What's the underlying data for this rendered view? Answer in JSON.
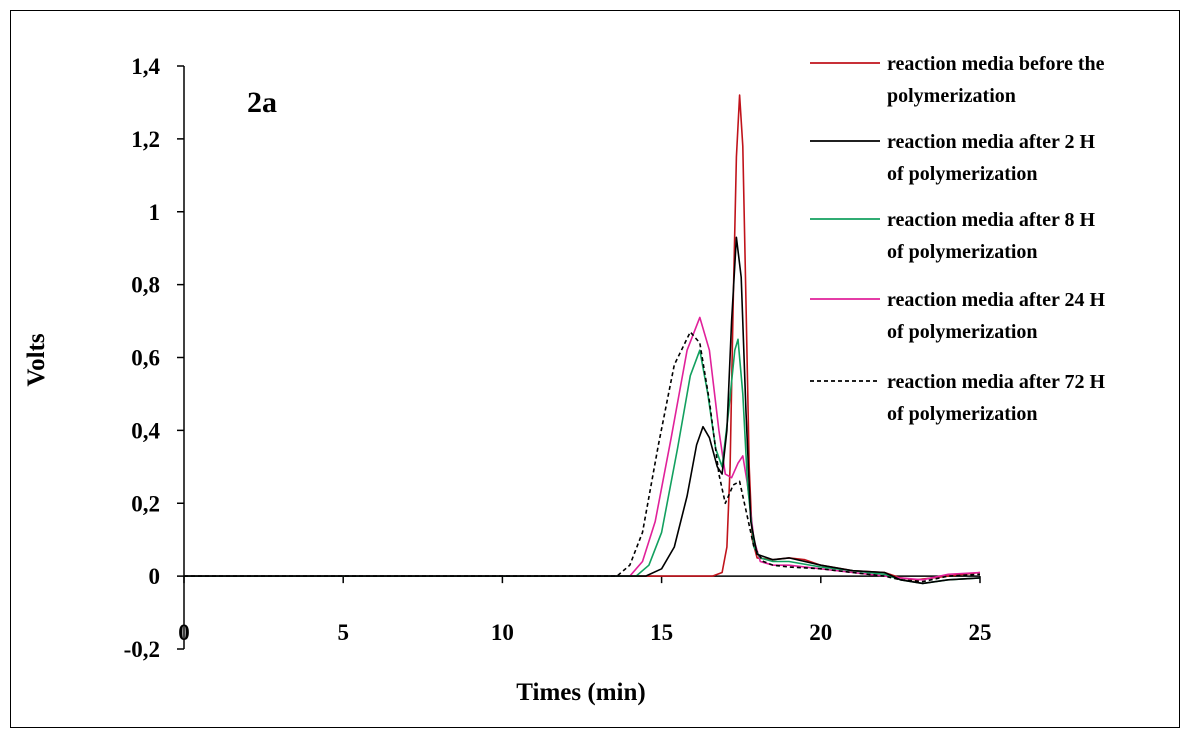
{
  "chart_data": {
    "type": "line",
    "panel_label": "2a",
    "xlabel": "Times (min)",
    "ylabel": "Volts",
    "xlim": [
      0,
      25
    ],
    "ylim": [
      -0.2,
      1.4
    ],
    "x_ticks": [
      0,
      5,
      10,
      15,
      20,
      25
    ],
    "x_tick_labels": [
      "0",
      "5",
      "10",
      "15",
      "20",
      "25"
    ],
    "y_ticks": [
      -0.2,
      0,
      0.2,
      0.4,
      0.6,
      0.8,
      1.0,
      1.2,
      1.4
    ],
    "y_tick_labels": [
      "-0,2",
      "0",
      "0,2",
      "0,4",
      "0,6",
      "0,8",
      "1",
      "1,2",
      "1,4"
    ],
    "grid": false,
    "legend_position": "top-right",
    "series": [
      {
        "name_lines": [
          "reaction media before the",
          "polymerization"
        ],
        "color": "#c0131b",
        "dashed": false,
        "points": [
          [
            0,
            0
          ],
          [
            16.6,
            0
          ],
          [
            16.9,
            0.01
          ],
          [
            17.05,
            0.08
          ],
          [
            17.15,
            0.3
          ],
          [
            17.25,
            0.75
          ],
          [
            17.35,
            1.15
          ],
          [
            17.45,
            1.32
          ],
          [
            17.55,
            1.18
          ],
          [
            17.65,
            0.75
          ],
          [
            17.75,
            0.3
          ],
          [
            17.85,
            0.1
          ],
          [
            18.0,
            0.05
          ],
          [
            18.5,
            0.045
          ],
          [
            19.0,
            0.05
          ],
          [
            19.5,
            0.045
          ],
          [
            20.0,
            0.03
          ],
          [
            21.0,
            0.015
          ],
          [
            22.0,
            0.01
          ],
          [
            22.5,
            -0.005
          ],
          [
            23.0,
            -0.01
          ],
          [
            24.0,
            0.0
          ],
          [
            25.0,
            0.01
          ]
        ]
      },
      {
        "name_lines": [
          "reaction media after 2 H",
          "of polymerization"
        ],
        "color": "#000000",
        "dashed": false,
        "points": [
          [
            0,
            0
          ],
          [
            14.5,
            0
          ],
          [
            15.0,
            0.02
          ],
          [
            15.4,
            0.08
          ],
          [
            15.8,
            0.22
          ],
          [
            16.1,
            0.36
          ],
          [
            16.3,
            0.41
          ],
          [
            16.5,
            0.38
          ],
          [
            16.75,
            0.3
          ],
          [
            16.9,
            0.28
          ],
          [
            17.05,
            0.4
          ],
          [
            17.2,
            0.7
          ],
          [
            17.35,
            0.93
          ],
          [
            17.5,
            0.82
          ],
          [
            17.65,
            0.45
          ],
          [
            17.8,
            0.15
          ],
          [
            18.0,
            0.06
          ],
          [
            18.5,
            0.045
          ],
          [
            19.0,
            0.05
          ],
          [
            19.5,
            0.04
          ],
          [
            20.0,
            0.03
          ],
          [
            21.0,
            0.015
          ],
          [
            22.0,
            0.01
          ],
          [
            22.5,
            -0.01
          ],
          [
            23.2,
            -0.02
          ],
          [
            24.0,
            -0.01
          ],
          [
            25.0,
            -0.005
          ]
        ]
      },
      {
        "name_lines": [
          "reaction media after 8 H",
          "of polymerization"
        ],
        "color": "#12a05f",
        "dashed": false,
        "points": [
          [
            0,
            0
          ],
          [
            14.2,
            0
          ],
          [
            14.6,
            0.03
          ],
          [
            15.0,
            0.12
          ],
          [
            15.5,
            0.35
          ],
          [
            15.9,
            0.55
          ],
          [
            16.2,
            0.62
          ],
          [
            16.45,
            0.5
          ],
          [
            16.7,
            0.35
          ],
          [
            16.9,
            0.3
          ],
          [
            17.1,
            0.45
          ],
          [
            17.3,
            0.62
          ],
          [
            17.4,
            0.65
          ],
          [
            17.55,
            0.5
          ],
          [
            17.7,
            0.25
          ],
          [
            17.9,
            0.08
          ],
          [
            18.1,
            0.05
          ],
          [
            18.5,
            0.04
          ],
          [
            19.0,
            0.04
          ],
          [
            20.0,
            0.025
          ],
          [
            21.0,
            0.015
          ],
          [
            22.0,
            0.005
          ],
          [
            22.5,
            -0.01
          ],
          [
            23.2,
            -0.02
          ],
          [
            24.0,
            -0.01
          ],
          [
            25.0,
            -0.005
          ]
        ]
      },
      {
        "name_lines": [
          "reaction media after 24 H",
          "of polymerization"
        ],
        "color": "#e0219a",
        "dashed": false,
        "points": [
          [
            0,
            0
          ],
          [
            14.0,
            0
          ],
          [
            14.4,
            0.04
          ],
          [
            14.8,
            0.15
          ],
          [
            15.3,
            0.38
          ],
          [
            15.8,
            0.62
          ],
          [
            16.2,
            0.71
          ],
          [
            16.5,
            0.62
          ],
          [
            16.8,
            0.4
          ],
          [
            17.0,
            0.28
          ],
          [
            17.2,
            0.27
          ],
          [
            17.4,
            0.31
          ],
          [
            17.55,
            0.33
          ],
          [
            17.7,
            0.25
          ],
          [
            17.9,
            0.1
          ],
          [
            18.1,
            0.04
          ],
          [
            18.5,
            0.03
          ],
          [
            19.0,
            0.03
          ],
          [
            20.0,
            0.02
          ],
          [
            21.0,
            0.01
          ],
          [
            22.0,
            0.0
          ],
          [
            22.5,
            -0.005
          ],
          [
            23.2,
            -0.01
          ],
          [
            24.0,
            0.005
          ],
          [
            25.0,
            0.01
          ]
        ]
      },
      {
        "name_lines": [
          "reaction media after 72 H",
          "of polymerization"
        ],
        "color": "#000000",
        "dashed": true,
        "points": [
          [
            0,
            0
          ],
          [
            13.6,
            0
          ],
          [
            14.0,
            0.03
          ],
          [
            14.4,
            0.12
          ],
          [
            14.9,
            0.36
          ],
          [
            15.4,
            0.58
          ],
          [
            15.9,
            0.67
          ],
          [
            16.2,
            0.64
          ],
          [
            16.5,
            0.48
          ],
          [
            16.8,
            0.28
          ],
          [
            17.0,
            0.2
          ],
          [
            17.25,
            0.25
          ],
          [
            17.45,
            0.26
          ],
          [
            17.65,
            0.18
          ],
          [
            17.9,
            0.08
          ],
          [
            18.2,
            0.04
          ],
          [
            18.5,
            0.03
          ],
          [
            19.0,
            0.025
          ],
          [
            20.0,
            0.02
          ],
          [
            21.0,
            0.01
          ],
          [
            22.0,
            0.0
          ],
          [
            22.5,
            -0.01
          ],
          [
            23.2,
            -0.015
          ],
          [
            24.0,
            0.0
          ],
          [
            25.0,
            0.005
          ]
        ]
      }
    ]
  }
}
